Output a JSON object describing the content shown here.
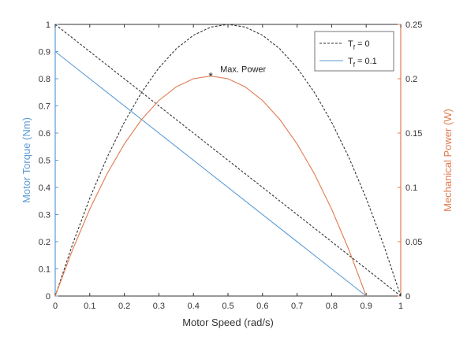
{
  "chart_data": {
    "type": "line",
    "xlabel": "Motor Speed (rad/s)",
    "ylabel_left": "Motor Torque (Nm)",
    "ylabel_right": "Mechanical Power (W)",
    "xlim": [
      0,
      1
    ],
    "ylim_left": [
      0,
      1
    ],
    "ylim_right": [
      0,
      0.25
    ],
    "x_ticks": [
      "0",
      "0.1",
      "0.2",
      "0.3",
      "0.4",
      "0.5",
      "0.6",
      "0.7",
      "0.8",
      "0.9",
      "1"
    ],
    "y_left_ticks": [
      "0",
      "0.1",
      "0.2",
      "0.3",
      "0.4",
      "0.5",
      "0.6",
      "0.7",
      "0.8",
      "0.9",
      "1"
    ],
    "y_right_ticks": [
      "0",
      "0.05",
      "0.1",
      "0.15",
      "0.2",
      "0.25"
    ],
    "grid": false,
    "legend_position": "top-right",
    "legend": [
      {
        "label_main": "T",
        "label_sub": "f",
        "label_rest": " = 0",
        "style": "dashed",
        "color": "#333333"
      },
      {
        "label_main": "T",
        "label_sub": "f",
        "label_rest": " = 0.1",
        "style": "solid",
        "color": "#5b9bd5"
      }
    ],
    "series": [
      {
        "axis": "left",
        "style": "dashed",
        "color": "#333333",
        "x": [
          0,
          1
        ],
        "y": [
          1,
          0
        ]
      },
      {
        "axis": "left",
        "style": "solid",
        "color": "#5b9bd5",
        "x": [
          0,
          0.9
        ],
        "y": [
          0.9,
          0
        ]
      },
      {
        "axis": "right",
        "style": "dashed",
        "color": "#333333",
        "x": [
          0,
          0.05,
          0.1,
          0.15,
          0.2,
          0.25,
          0.3,
          0.35,
          0.4,
          0.45,
          0.5,
          0.55,
          0.6,
          0.65,
          0.7,
          0.75,
          0.8,
          0.85,
          0.9,
          0.95,
          1
        ],
        "y": [
          0,
          0.0475,
          0.09,
          0.1275,
          0.16,
          0.1875,
          0.21,
          0.2275,
          0.24,
          0.2475,
          0.25,
          0.2475,
          0.24,
          0.2275,
          0.21,
          0.1875,
          0.16,
          0.1275,
          0.09,
          0.0475,
          0
        ]
      },
      {
        "axis": "right",
        "style": "solid",
        "color": "#e07b4f",
        "x": [
          0,
          0.05,
          0.1,
          0.15,
          0.2,
          0.25,
          0.3,
          0.35,
          0.4,
          0.45,
          0.5,
          0.55,
          0.6,
          0.65,
          0.7,
          0.75,
          0.8,
          0.85,
          0.9
        ],
        "y": [
          0,
          0.0425,
          0.08,
          0.1125,
          0.14,
          0.1625,
          0.18,
          0.1925,
          0.2,
          0.2025,
          0.2,
          0.1925,
          0.18,
          0.1625,
          0.14,
          0.1125,
          0.08,
          0.0425,
          0
        ]
      }
    ],
    "annotation": {
      "text": "Max. Power",
      "x": 0.45,
      "y": 0.2025,
      "axis": "right",
      "marker": "*"
    },
    "colors": {
      "left_axis": "#5b9bd5",
      "right_axis": "#e07b4f",
      "frame": "#333333"
    }
  }
}
